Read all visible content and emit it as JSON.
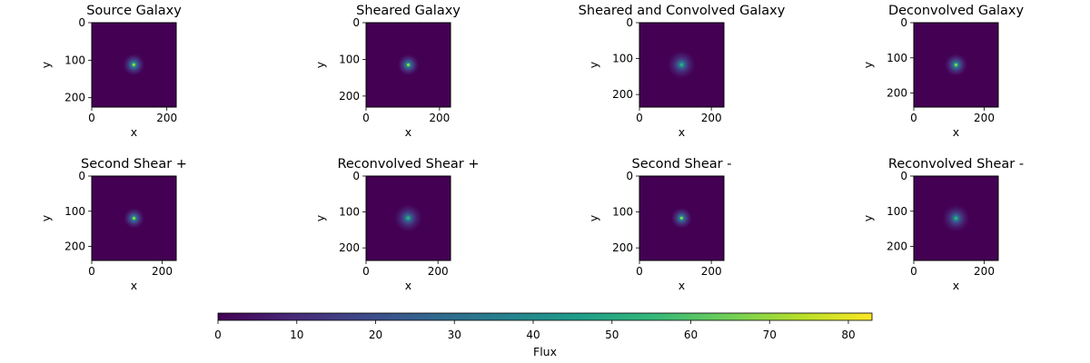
{
  "colormap": {
    "name": "viridis",
    "stops": [
      "#440154",
      "#482878",
      "#3e4989",
      "#31688e",
      "#26828e",
      "#1f9e89",
      "#35b779",
      "#6ece58",
      "#b5de2b",
      "#fde725"
    ]
  },
  "chart_data": [
    {
      "type": "heatmap",
      "title": "Source Galaxy",
      "xlabel": "x",
      "ylabel": "y",
      "xlim": [
        0,
        225
      ],
      "ylim": [
        225,
        0
      ],
      "xticks": [
        0,
        200
      ],
      "yticks": [
        0,
        100,
        200
      ],
      "peak_center": [
        112,
        112
      ],
      "peak_flux": 70,
      "core_radius": 4,
      "halo_radius": 18
    },
    {
      "type": "heatmap",
      "title": "Sheared Galaxy",
      "xlabel": "x",
      "ylabel": "y",
      "xlim": [
        0,
        230
      ],
      "ylim": [
        230,
        0
      ],
      "xticks": [
        0,
        200
      ],
      "yticks": [
        0,
        100,
        200
      ],
      "peak_center": [
        115,
        115
      ],
      "peak_flux": 68,
      "core_radius": 4,
      "halo_radius": 18
    },
    {
      "type": "heatmap",
      "title": "Sheared and Convolved Galaxy",
      "xlabel": "x",
      "ylabel": "y",
      "xlim": [
        0,
        235
      ],
      "ylim": [
        235,
        0
      ],
      "xticks": [
        0,
        200
      ],
      "yticks": [
        0,
        100,
        200
      ],
      "peak_center": [
        117,
        117
      ],
      "peak_flux": 52,
      "core_radius": 7,
      "halo_radius": 24
    },
    {
      "type": "heatmap",
      "title": "Deconvolved Galaxy",
      "xlabel": "x",
      "ylabel": "y",
      "xlim": [
        0,
        240
      ],
      "ylim": [
        240,
        0
      ],
      "xticks": [
        0,
        200
      ],
      "yticks": [
        0,
        100,
        200
      ],
      "peak_center": [
        120,
        120
      ],
      "peak_flux": 66,
      "core_radius": 5,
      "halo_radius": 20
    },
    {
      "type": "heatmap",
      "title": "Second Shear +",
      "xlabel": "x",
      "ylabel": "y",
      "xlim": [
        0,
        240
      ],
      "ylim": [
        240,
        0
      ],
      "xticks": [
        0,
        200
      ],
      "yticks": [
        0,
        100,
        200
      ],
      "peak_center": [
        120,
        120
      ],
      "peak_flux": 68,
      "core_radius": 4,
      "halo_radius": 18
    },
    {
      "type": "heatmap",
      "title": "Reconvolved Shear +",
      "xlabel": "x",
      "ylabel": "y",
      "xlim": [
        0,
        235
      ],
      "ylim": [
        235,
        0
      ],
      "xticks": [
        0,
        200
      ],
      "yticks": [
        0,
        100,
        200
      ],
      "peak_center": [
        117,
        117
      ],
      "peak_flux": 52,
      "core_radius": 7,
      "halo_radius": 24
    },
    {
      "type": "heatmap",
      "title": "Second Shear -",
      "xlabel": "x",
      "ylabel": "y",
      "xlim": [
        0,
        235
      ],
      "ylim": [
        235,
        0
      ],
      "xticks": [
        0,
        200
      ],
      "yticks": [
        0,
        100,
        200
      ],
      "peak_center": [
        117,
        117
      ],
      "peak_flux": 68,
      "core_radius": 4,
      "halo_radius": 18
    },
    {
      "type": "heatmap",
      "title": "Reconvolved Shear -",
      "xlabel": "x",
      "ylabel": "y",
      "xlim": [
        0,
        240
      ],
      "ylim": [
        240,
        0
      ],
      "xticks": [
        0,
        200
      ],
      "yticks": [
        0,
        100,
        200
      ],
      "peak_center": [
        120,
        120
      ],
      "peak_flux": 52,
      "core_radius": 7,
      "halo_radius": 24
    }
  ],
  "colorbar": {
    "label": "Flux",
    "range": [
      0,
      83
    ],
    "ticks": [
      0,
      10,
      20,
      30,
      40,
      50,
      60,
      70,
      80
    ]
  }
}
